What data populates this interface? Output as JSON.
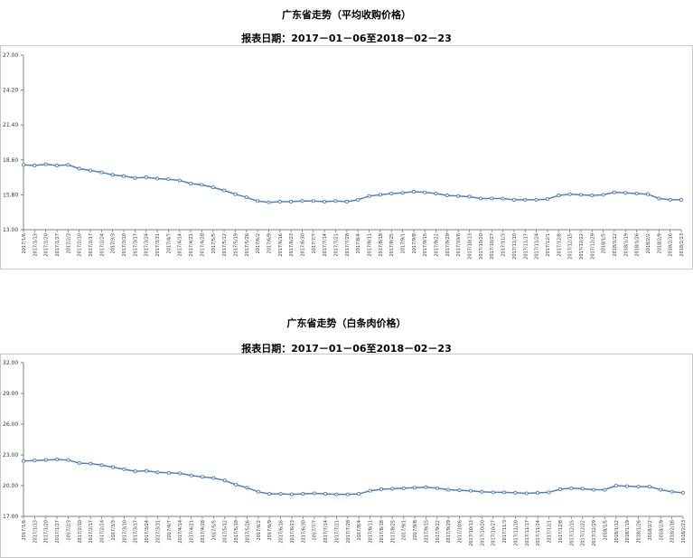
{
  "chart_data": [
    {
      "type": "line",
      "title": "广东省走势（平均收购价格）",
      "subtitle": "报表日期：2017－01－06至2018－02－23",
      "ylim": [
        13.0,
        27.0
      ],
      "yticks": [
        "13.00",
        "15.80",
        "18.60",
        "21.40",
        "24.20",
        "27.00"
      ],
      "ytick_values": [
        13.0,
        15.8,
        18.6,
        21.4,
        24.2,
        27.0
      ],
      "grid": false,
      "line_color": "#4f81bd",
      "categories": [
        "2017/1/6",
        "2017/1/13",
        "2017/1/20",
        "2017/1/27",
        "2017/2/3",
        "2017/2/10",
        "2017/2/17",
        "2017/2/24",
        "2017/3/3",
        "2017/3/10",
        "2017/3/17",
        "2017/3/24",
        "2017/3/31",
        "2017/4/7",
        "2017/4/14",
        "2017/4/21",
        "2017/4/28",
        "2017/5/5",
        "2017/5/12",
        "2017/5/19",
        "2017/5/26",
        "2017/6/2",
        "2017/6/9",
        "2017/6/16",
        "2017/6/23",
        "2017/6/30",
        "2017/7/7",
        "2017/7/14",
        "2017/7/21",
        "2017/7/28",
        "2017/8/4",
        "2017/8/11",
        "2017/8/18",
        "2017/8/25",
        "2017/9/1",
        "2017/9/8",
        "2017/9/15",
        "2017/9/22",
        "2017/9/29",
        "2017/10/6",
        "2017/10/13",
        "2017/10/20",
        "2017/10/27",
        "2017/11/3",
        "2017/11/10",
        "2017/11/17",
        "2017/11/24",
        "2017/12/1",
        "2017/12/8",
        "2017/12/15",
        "2017/12/22",
        "2017/12/29",
        "2018/1/5",
        "2018/1/12",
        "2018/1/19",
        "2018/1/26",
        "2018/2/2",
        "2018/2/9",
        "2018/2/16",
        "2018/2/23"
      ],
      "values": [
        18.2,
        18.15,
        18.25,
        18.15,
        18.2,
        17.9,
        17.75,
        17.6,
        17.4,
        17.3,
        17.15,
        17.2,
        17.1,
        17.05,
        16.95,
        16.7,
        16.6,
        16.4,
        16.15,
        15.85,
        15.6,
        15.3,
        15.2,
        15.25,
        15.25,
        15.3,
        15.3,
        15.25,
        15.3,
        15.25,
        15.4,
        15.7,
        15.8,
        15.9,
        15.95,
        16.05,
        16.0,
        15.9,
        15.75,
        15.7,
        15.65,
        15.5,
        15.5,
        15.5,
        15.4,
        15.4,
        15.4,
        15.45,
        15.75,
        15.85,
        15.8,
        15.75,
        15.8,
        16.0,
        15.95,
        15.9,
        15.85,
        15.5,
        15.4,
        15.4
      ]
    },
    {
      "type": "line",
      "title": "广东省走势（白条肉价格）",
      "subtitle": "报表日期：2017－01－06至2018－02－23",
      "ylim": [
        17.0,
        32.0
      ],
      "yticks": [
        "17.00",
        "20.00",
        "23.00",
        "26.00",
        "29.00",
        "32.00"
      ],
      "ytick_values": [
        17.0,
        20.0,
        23.0,
        26.0,
        29.0,
        32.0
      ],
      "grid": false,
      "line_color": "#4f81bd",
      "categories": [
        "2017/1/6",
        "2017/1/13",
        "2017/1/20",
        "2017/1/27",
        "2017/2/3",
        "2017/2/10",
        "2017/2/17",
        "2017/2/24",
        "2017/3/3",
        "2017/3/10",
        "2017/3/17",
        "2017/3/24",
        "2017/3/31",
        "2017/4/7",
        "2017/4/14",
        "2017/4/21",
        "2017/4/28",
        "2017/5/5",
        "2017/5/12",
        "2017/5/19",
        "2017/5/26",
        "2017/6/2",
        "2017/6/9",
        "2017/6/16",
        "2017/6/23",
        "2017/6/30",
        "2017/7/7",
        "2017/7/14",
        "2017/7/21",
        "2017/7/28",
        "2017/8/4",
        "2017/8/11",
        "2017/8/18",
        "2017/8/25",
        "2017/9/1",
        "2017/9/8",
        "2017/9/15",
        "2017/9/22",
        "2017/9/29",
        "2017/10/6",
        "2017/10/13",
        "2017/10/20",
        "2017/10/27",
        "2017/11/3",
        "2017/11/10",
        "2017/11/17",
        "2017/11/24",
        "2017/12/1",
        "2017/12/8",
        "2017/12/15",
        "2017/12/22",
        "2017/12/29",
        "2018/1/5",
        "2018/1/12",
        "2018/1/19",
        "2018/1/26",
        "2018/2/2",
        "2018/2/9",
        "2018/2/16",
        "2018/2/23"
      ],
      "values": [
        22.4,
        22.45,
        22.5,
        22.55,
        22.5,
        22.2,
        22.15,
        22.0,
        21.8,
        21.6,
        21.4,
        21.45,
        21.3,
        21.25,
        21.2,
        21.0,
        20.85,
        20.75,
        20.5,
        20.1,
        19.8,
        19.4,
        19.2,
        19.2,
        19.15,
        19.2,
        19.25,
        19.2,
        19.15,
        19.15,
        19.2,
        19.5,
        19.65,
        19.7,
        19.75,
        19.8,
        19.85,
        19.75,
        19.6,
        19.55,
        19.5,
        19.4,
        19.35,
        19.35,
        19.3,
        19.25,
        19.3,
        19.35,
        19.65,
        19.75,
        19.7,
        19.6,
        19.6,
        20.0,
        19.95,
        19.9,
        19.9,
        19.6,
        19.4,
        19.3
      ]
    }
  ]
}
